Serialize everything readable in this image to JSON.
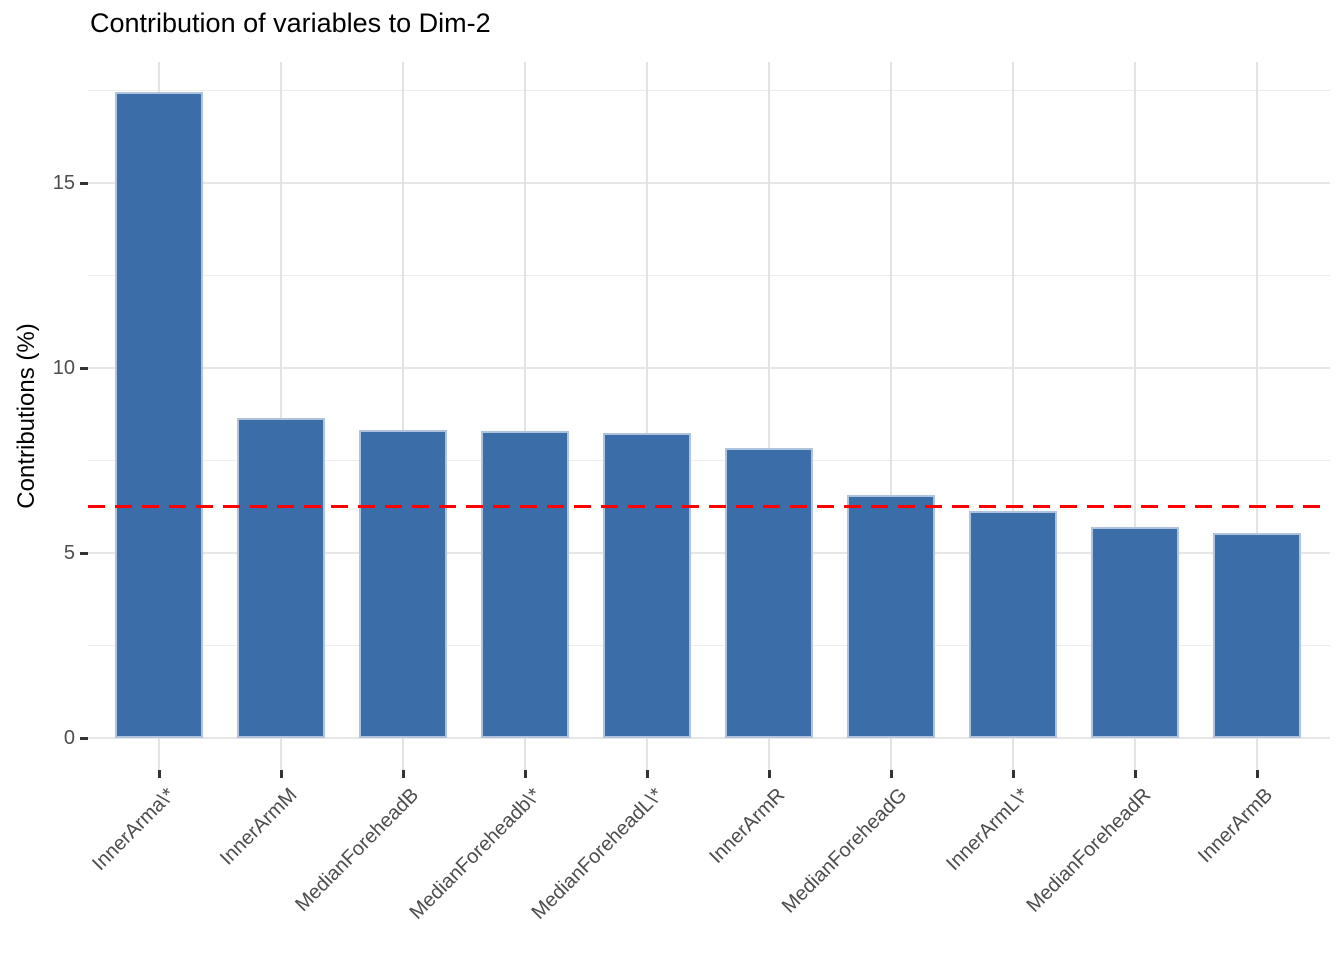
{
  "title": "Contribution of variables to Dim-2",
  "chart_data": {
    "type": "bar",
    "title": "Contribution of variables to Dim-2",
    "xlabel": "",
    "ylabel": "Contributions (%)",
    "categories": [
      "InnerArma\\*",
      "InnerArmM",
      "MedianForeheadB",
      "MedianForeheadb\\*",
      "MedianForeheadL\\*",
      "InnerArmR",
      "MedianForeheadG",
      "InnerArmL\\*",
      "MedianForeheadR",
      "InnerArmB"
    ],
    "values": [
      17.46,
      8.65,
      8.32,
      8.3,
      8.24,
      7.84,
      6.57,
      6.14,
      5.7,
      5.54
    ],
    "yticks": [
      0,
      5,
      10,
      15
    ],
    "minor_ticks": [
      2.5,
      7.5,
      12.5,
      17.5
    ],
    "ylim": [
      0,
      18.3
    ],
    "grid": true,
    "legend": "none",
    "reference_line": {
      "value": 6.25,
      "color": "#fe0000",
      "style": "dashed"
    },
    "bar_color": "#3b6ea8",
    "bar_border_color": "#afc4dc"
  }
}
